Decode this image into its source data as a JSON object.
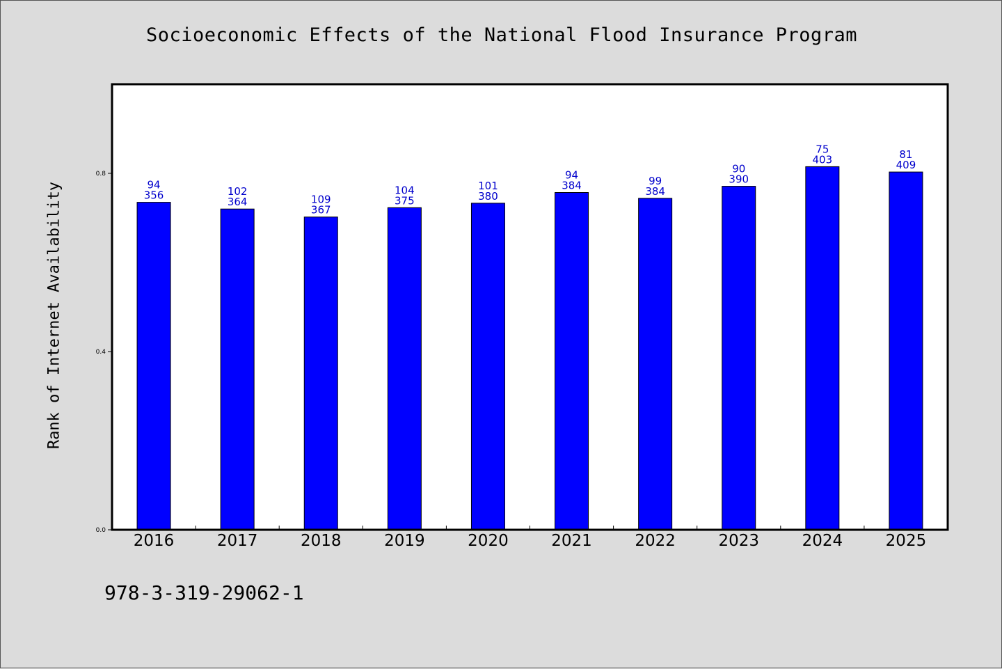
{
  "title": "Socioeconomic Effects of the National Flood Insurance Program",
  "footer_text": "978-3-319-29062-1",
  "chart_data": {
    "type": "bar",
    "title": "Socioeconomic Effects of the National Flood Insurance Program",
    "xlabel": "",
    "ylabel": "Rank of Internet Availability",
    "categories": [
      "2016",
      "2017",
      "2018",
      "2019",
      "2020",
      "2021",
      "2022",
      "2023",
      "2024",
      "2025"
    ],
    "values": [
      0.735,
      0.72,
      0.702,
      0.723,
      0.733,
      0.757,
      0.744,
      0.771,
      0.815,
      0.803
    ],
    "label_top": [
      "94",
      "102",
      "109",
      "104",
      "101",
      "94",
      "99",
      "90",
      "75",
      "81"
    ],
    "label_bottom": [
      "356",
      "364",
      "367",
      "375",
      "380",
      "384",
      "384",
      "390",
      "403",
      "409"
    ],
    "ylim": [
      0,
      1.0
    ],
    "yticks": [
      0.0,
      0.4,
      0.8
    ],
    "ytick_labels": [
      "0.0",
      "0.4",
      "0.8"
    ],
    "grid": false,
    "legend": "none",
    "colors": {
      "bar": "#0000ff",
      "bar_edge": "#000000",
      "labels": "#0000cc",
      "background": "#dcdcdc",
      "plot_bg": "#ffffff"
    }
  }
}
